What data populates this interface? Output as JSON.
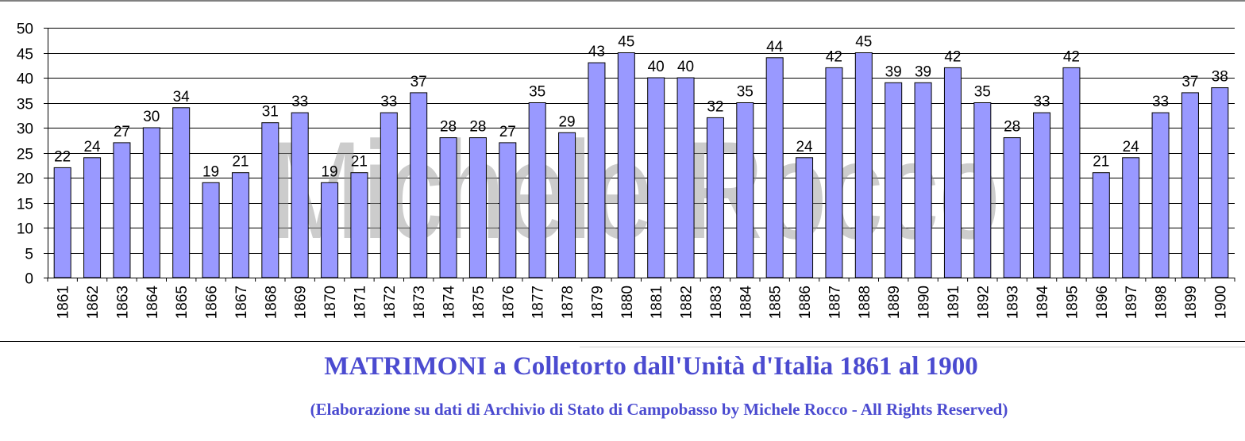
{
  "chart_data": {
    "type": "bar",
    "title": "MATRIMONI a Colletorto dall'Unità d'Italia 1861 al 1900",
    "subtitle": "(Elaborazione su dati di Archivio di Stato di Campobasso by Michele Rocco - All Rights Reserved)",
    "watermark": "Michele Rocco",
    "categories": [
      "1861",
      "1862",
      "1863",
      "1864",
      "1865",
      "1866",
      "1867",
      "1868",
      "1869",
      "1870",
      "1871",
      "1872",
      "1873",
      "1874",
      "1875",
      "1876",
      "1877",
      "1878",
      "1879",
      "1880",
      "1881",
      "1882",
      "1883",
      "1884",
      "1885",
      "1886",
      "1887",
      "1888",
      "1889",
      "1890",
      "1891",
      "1892",
      "1893",
      "1894",
      "1895",
      "1896",
      "1897",
      "1898",
      "1899",
      "1900"
    ],
    "values": [
      22,
      24,
      27,
      30,
      34,
      19,
      21,
      31,
      33,
      19,
      21,
      33,
      37,
      28,
      28,
      27,
      35,
      29,
      43,
      45,
      40,
      40,
      32,
      35,
      44,
      24,
      42,
      45,
      39,
      39,
      42,
      35,
      28,
      33,
      42,
      21,
      24,
      33,
      37,
      38
    ],
    "ylim": [
      0,
      50
    ],
    "yticks": [
      0,
      5,
      10,
      15,
      20,
      25,
      30,
      35,
      40,
      45,
      50
    ],
    "grid": true,
    "bar_color": "#9999ff",
    "xlabel": "",
    "ylabel": ""
  }
}
